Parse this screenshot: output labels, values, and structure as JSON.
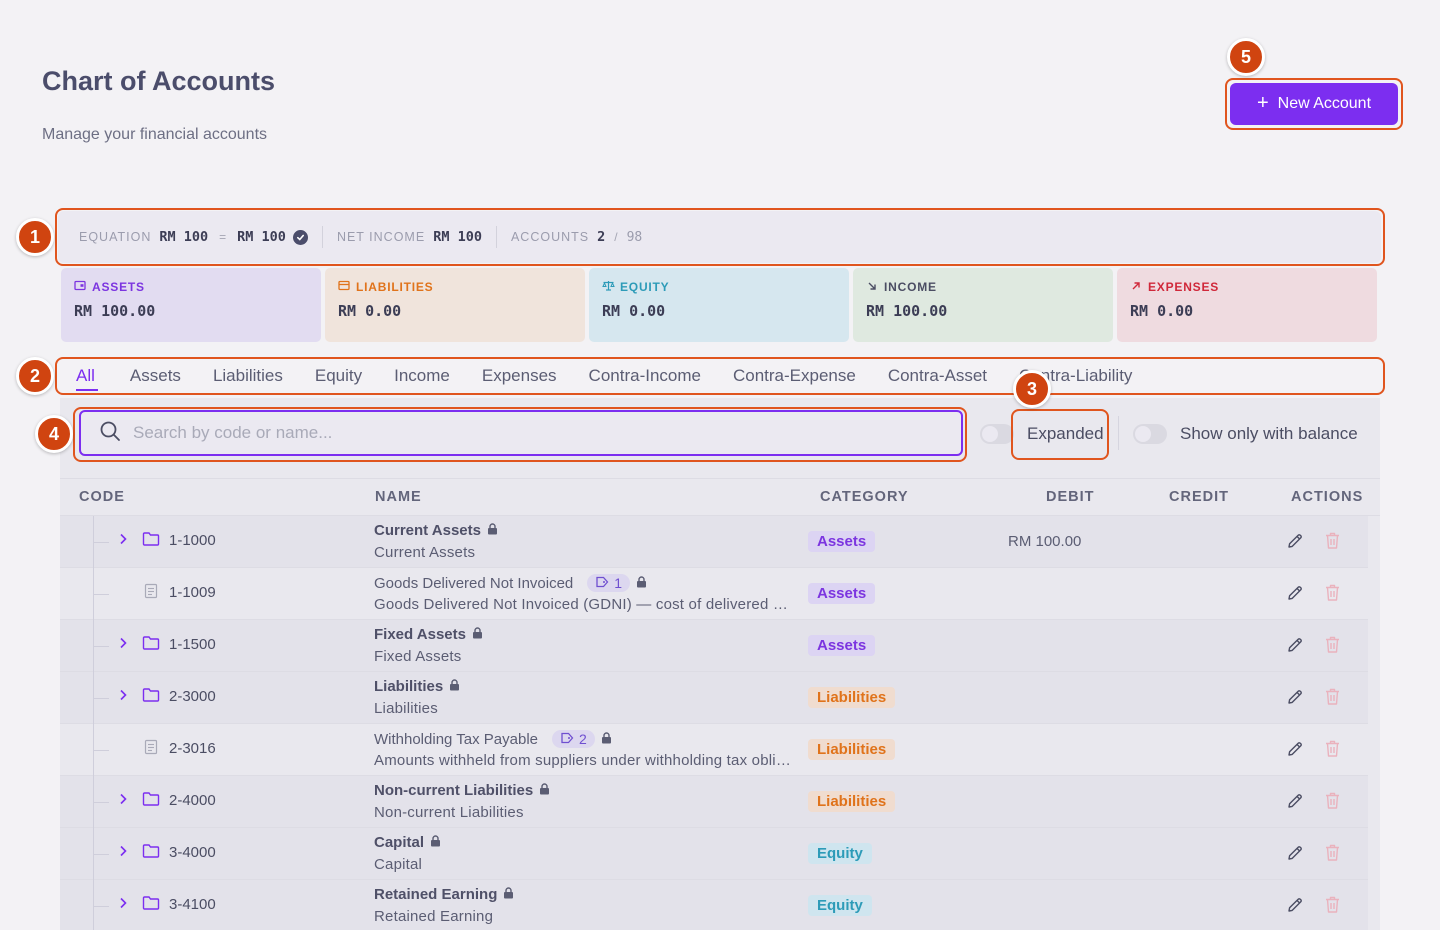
{
  "page": {
    "title": "Chart of Accounts",
    "subtitle": "Manage your financial accounts"
  },
  "new_account_button": {
    "label": "New Account"
  },
  "markers": [
    "1",
    "2",
    "3",
    "4",
    "5"
  ],
  "equation": {
    "label": "EQUATION",
    "left": "RM 100",
    "op": "=",
    "right": "RM 100",
    "net_income_label": "NET INCOME",
    "net_income": "RM 100",
    "accounts_label": "ACCOUNTS",
    "accounts_count": "2",
    "accounts_sep": "/",
    "accounts_total": "98"
  },
  "cards": [
    {
      "label": "ASSETS",
      "amount": "RM 100.00",
      "icon": "wallet-icon",
      "color": "#7c35e0",
      "bg": "#e2dcf1"
    },
    {
      "label": "LIABILITIES",
      "amount": "RM 0.00",
      "icon": "card-icon",
      "color": "#e0731b",
      "bg": "#f0e4dc"
    },
    {
      "label": "EQUITY",
      "amount": "RM 0.00",
      "icon": "scale-icon",
      "color": "#2d9bb8",
      "bg": "#d6e7ef"
    },
    {
      "label": "INCOME",
      "amount": "RM 100.00",
      "icon": "arrow-down-right-icon",
      "color": "#4b4d63",
      "bg": "#dfe9e0"
    },
    {
      "label": "EXPENSES",
      "amount": "RM 0.00",
      "icon": "arrow-up-right-icon",
      "color": "#d0283a",
      "bg": "#efdbe0"
    }
  ],
  "tabs": [
    "All",
    "Assets",
    "Liabilities",
    "Equity",
    "Income",
    "Expenses",
    "Contra-Income",
    "Contra-Expense",
    "Contra-Asset",
    "Contra-Liability"
  ],
  "active_tab": "All",
  "search": {
    "placeholder": "Search by code or name...",
    "value": ""
  },
  "toggles": {
    "expanded": {
      "label": "Expanded",
      "on": false
    },
    "balance": {
      "label": "Show only with balance",
      "on": false
    }
  },
  "table": {
    "headers": {
      "code": "CODE",
      "name": "NAME",
      "category": "CATEGORY",
      "debit": "DEBIT",
      "credit": "CREDIT",
      "actions": "ACTIONS"
    },
    "rows": [
      {
        "code": "1-1000",
        "name": "Current Assets",
        "desc": "Current Assets",
        "category": "Assets",
        "debit": "RM 100.00",
        "credit": "",
        "group": true,
        "tag": ""
      },
      {
        "code": "1-1009",
        "name": "Goods Delivered Not Invoiced",
        "desc": "Goods Delivered Not Invoiced (GDNI) — cost of delivered goods awaiting supplier invoice",
        "category": "Assets",
        "debit": "",
        "credit": "",
        "group": false,
        "tag": "1"
      },
      {
        "code": "1-1500",
        "name": "Fixed Assets",
        "desc": "Fixed Assets",
        "category": "Assets",
        "debit": "",
        "credit": "",
        "group": true,
        "tag": ""
      },
      {
        "code": "2-3000",
        "name": "Liabilities",
        "desc": "Liabilities",
        "category": "Liabilities",
        "debit": "",
        "credit": "",
        "group": true,
        "tag": ""
      },
      {
        "code": "2-3016",
        "name": "Withholding Tax Payable",
        "desc": "Amounts withheld from suppliers under withholding tax obligations",
        "category": "Liabilities",
        "debit": "",
        "credit": "",
        "group": false,
        "tag": "2"
      },
      {
        "code": "2-4000",
        "name": "Non-current Liabilities",
        "desc": "Non-current Liabilities",
        "category": "Liabilities",
        "debit": "",
        "credit": "",
        "group": true,
        "tag": ""
      },
      {
        "code": "3-4000",
        "name": "Capital",
        "desc": "Capital",
        "category": "Equity",
        "debit": "",
        "credit": "",
        "group": true,
        "tag": ""
      },
      {
        "code": "3-4100",
        "name": "Retained Earning",
        "desc": "Retained Earning",
        "category": "Equity",
        "debit": "",
        "credit": "",
        "group": true,
        "tag": ""
      }
    ]
  }
}
